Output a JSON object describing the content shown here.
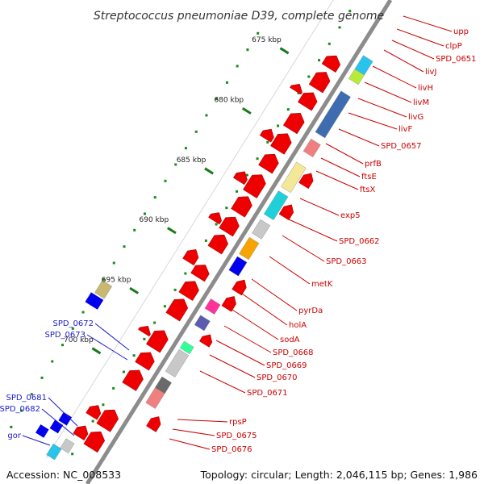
{
  "title": "Streptococcus pneumoniae D39, complete genome",
  "footer": {
    "accession": "Accession: NC_008533",
    "topology": "Topology: circular; Length: 2,046,115 bp; Genes: 1,986"
  },
  "colors": {
    "forward_gene": "#ee0000",
    "backbone": "#8c8c8c",
    "gc_dots": "#1a8a1a",
    "label_red": "#cc0000",
    "label_blue": "#1a1acc",
    "reverse_gene": "#0000ee"
  },
  "scale": {
    "tick_labels": [
      "675 kbp",
      "680 kbp",
      "685 kbp",
      "690 kbp",
      "695 kbp",
      "700 kbp"
    ]
  },
  "labels_right": [
    "upp",
    "clpP",
    "SPD_0651",
    "livJ",
    "livH",
    "livM",
    "livG",
    "livF",
    "SPD_0657",
    "prfB",
    "ftsE",
    "ftsX",
    "exp5",
    "SPD_0662",
    "SPD_0663",
    "metK",
    "pyrDa",
    "holA",
    "sodA",
    "SPD_0668",
    "SPD_0669",
    "SPD_0670",
    "SPD_0671",
    "rpsP",
    "SPD_0675",
    "SPD_0676"
  ],
  "labels_left": [
    "SPD_0672",
    "SPD_0673",
    "SPD_0681",
    "SPD_0682",
    "gor"
  ],
  "features": [
    {
      "color": "#29c4ec",
      "strand": "+"
    },
    {
      "color": "#b7eb3a",
      "strand": "+"
    },
    {
      "color": "#3d6db0",
      "strand": "+"
    },
    {
      "color": "#f08080",
      "strand": "+"
    },
    {
      "color": "#f2e898",
      "strand": "+"
    },
    {
      "color": "#20d0d8",
      "strand": "+"
    },
    {
      "color": "#c8c8c8",
      "strand": "+"
    },
    {
      "color": "#f7a400",
      "strand": "+"
    },
    {
      "color": "#0000ee",
      "strand": "+"
    },
    {
      "color": "#ff3399",
      "strand": "+"
    },
    {
      "color": "#5b5bb0",
      "strand": "+"
    },
    {
      "color": "#33ff99",
      "strand": "+"
    },
    {
      "color": "#c9b870",
      "strand": "-"
    },
    {
      "color": "#0000ee",
      "strand": "-"
    }
  ]
}
